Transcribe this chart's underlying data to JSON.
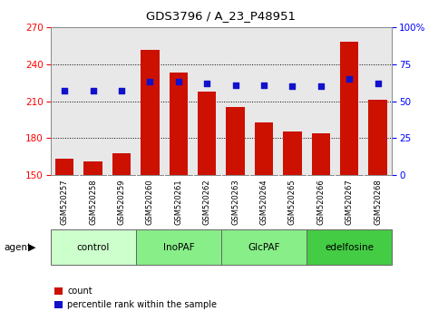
{
  "title": "GDS3796 / A_23_P48951",
  "samples": [
    "GSM520257",
    "GSM520258",
    "GSM520259",
    "GSM520260",
    "GSM520261",
    "GSM520262",
    "GSM520263",
    "GSM520264",
    "GSM520265",
    "GSM520266",
    "GSM520267",
    "GSM520268"
  ],
  "counts": [
    163,
    161,
    168,
    252,
    233,
    218,
    205,
    193,
    185,
    184,
    258,
    211
  ],
  "percentile_ranks": [
    57,
    57,
    57,
    63,
    63,
    62,
    61,
    61,
    60,
    60,
    65,
    62
  ],
  "groups": [
    {
      "label": "control",
      "start": 0,
      "end": 3
    },
    {
      "label": "InoPAF",
      "start": 3,
      "end": 6
    },
    {
      "label": "GlcPAF",
      "start": 6,
      "end": 9
    },
    {
      "label": "edelfosine",
      "start": 9,
      "end": 12
    }
  ],
  "group_colors": [
    "#ccffcc",
    "#88ee88",
    "#88ee88",
    "#44cc44"
  ],
  "bar_color": "#cc1100",
  "dot_color": "#1111cc",
  "ylim_left": [
    150,
    270
  ],
  "ylim_right": [
    0,
    100
  ],
  "yticks_left": [
    150,
    180,
    210,
    240,
    270
  ],
  "yticks_right": [
    0,
    25,
    50,
    75,
    100
  ],
  "plot_bg": "#e8e8e8",
  "xtick_bg": "#c8c8c8",
  "legend_count_label": "count",
  "legend_pct_label": "percentile rank within the sample",
  "agent_label": "agent"
}
